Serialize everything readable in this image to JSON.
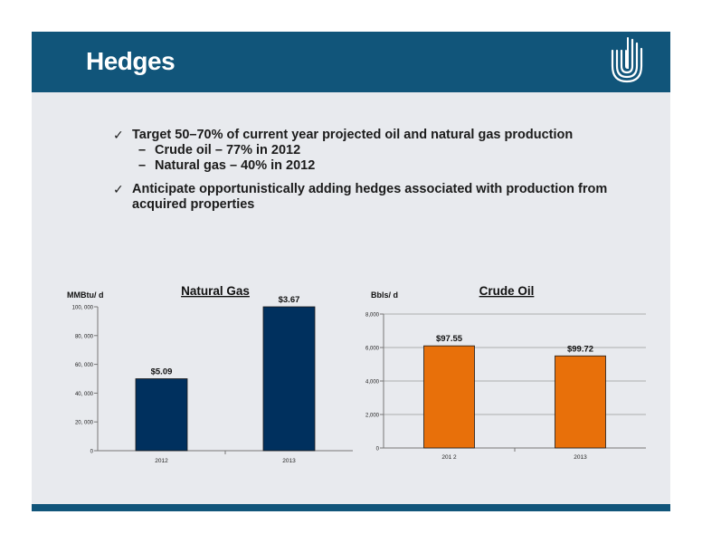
{
  "slide": {
    "title": "Hedges",
    "bullets": [
      {
        "text": "Target 50–70%  of current year projected oil and natural gas production",
        "subs": [
          "Crude oil – 77%  in 2012",
          "Natural gas – 40%  in 2012"
        ]
      },
      {
        "text": "Anticipate opportunistically adding hedges associated with production from acquired properties",
        "subs": []
      }
    ]
  },
  "colors": {
    "header": "#11557a",
    "gas_bar": "#00305e",
    "oil_bar": "#e8700a",
    "background": "#e8eaee"
  },
  "icons": {
    "bullet": "check-icon",
    "logo": "company-logo-icon"
  },
  "chart_data": [
    {
      "type": "bar",
      "title": "Natural Gas",
      "ylabel": "MMBtu/ d",
      "categories": [
        "2012",
        "2013"
      ],
      "values": [
        50000,
        100000
      ],
      "data_labels": [
        "$5.09",
        "$3.67"
      ],
      "ylim": [
        0,
        100000
      ],
      "yticks": [
        0,
        20000,
        40000,
        60000,
        80000,
        100000
      ],
      "ytick_labels": [
        "0",
        "20, 000",
        "40, 000",
        "60, 000",
        "80, 000",
        "100, 000"
      ],
      "color": "#00305e",
      "grid": false
    },
    {
      "type": "bar",
      "title": "Crude Oil",
      "ylabel": "Bbls/ d",
      "categories": [
        "201 2",
        "2013"
      ],
      "values": [
        6100,
        5500
      ],
      "data_labels": [
        "$97.55",
        "$99.72"
      ],
      "ylim": [
        0,
        8000
      ],
      "yticks": [
        0,
        2000,
        4000,
        6000,
        8000
      ],
      "ytick_labels": [
        "0",
        "2,000",
        "4,000",
        "6,000",
        "8,000"
      ],
      "color": "#e8700a",
      "grid": true
    }
  ]
}
